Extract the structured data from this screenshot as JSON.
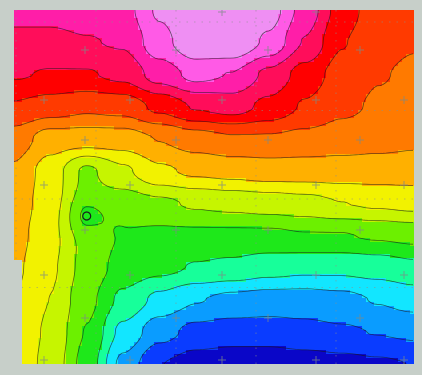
{
  "chart_data": {
    "type": "heatmap",
    "subtype": "filled-contour-map",
    "title": "",
    "xlabel": "",
    "ylabel": "",
    "grid": true,
    "legend": "none",
    "colormap": [
      "#0a06c8",
      "#0a3cff",
      "#0a9cff",
      "#12e6ff",
      "#17ff9a",
      "#1ee81a",
      "#6cf000",
      "#c6f500",
      "#f2f200",
      "#ffb000",
      "#ff7a00",
      "#ff3a00",
      "#ff0000",
      "#ff0d5a",
      "#ff1ea8",
      "#ff5ae6",
      "#ef8ff3"
    ],
    "value_range": [
      0,
      1
    ],
    "note_levels": 16,
    "cols": 12,
    "rows": 12,
    "values": [
      [
        0.84,
        0.84,
        0.85,
        0.86,
        0.95,
        1.0,
        1.0,
        0.97,
        0.86,
        0.74,
        0.67,
        0.66
      ],
      [
        0.81,
        0.81,
        0.82,
        0.83,
        0.92,
        0.99,
        1.0,
        0.93,
        0.82,
        0.71,
        0.66,
        0.65
      ],
      [
        0.77,
        0.76,
        0.76,
        0.78,
        0.85,
        0.9,
        0.88,
        0.81,
        0.74,
        0.68,
        0.65,
        0.64
      ],
      [
        0.7,
        0.68,
        0.66,
        0.67,
        0.72,
        0.77,
        0.79,
        0.75,
        0.7,
        0.66,
        0.64,
        0.63
      ],
      [
        0.62,
        0.56,
        0.56,
        0.56,
        0.59,
        0.62,
        0.64,
        0.64,
        0.63,
        0.62,
        0.61,
        0.6
      ],
      [
        0.58,
        0.5,
        0.4,
        0.46,
        0.52,
        0.54,
        0.55,
        0.56,
        0.56,
        0.56,
        0.56,
        0.56
      ],
      [
        0.56,
        0.5,
        0.4,
        0.38,
        0.4,
        0.42,
        0.43,
        0.44,
        0.45,
        0.47,
        0.48,
        0.49
      ],
      [
        0.55,
        0.49,
        0.4,
        0.35,
        0.34,
        0.34,
        0.34,
        0.34,
        0.35,
        0.35,
        0.36,
        0.37
      ],
      [
        0.54,
        0.48,
        0.39,
        0.33,
        0.31,
        0.29,
        0.28,
        0.26,
        0.25,
        0.25,
        0.26,
        0.28
      ],
      [
        0.53,
        0.47,
        0.37,
        0.28,
        0.22,
        0.18,
        0.16,
        0.15,
        0.15,
        0.16,
        0.18,
        0.2
      ],
      [
        0.52,
        0.46,
        0.35,
        0.22,
        0.14,
        0.1,
        0.09,
        0.09,
        0.1,
        0.11,
        0.12,
        0.13
      ],
      [
        0.52,
        0.45,
        0.33,
        0.16,
        0.06,
        0.03,
        0.02,
        0.02,
        0.03,
        0.04,
        0.05,
        0.06
      ]
    ],
    "peaks": [
      {
        "kind": "local-minimum",
        "col": 2.0,
        "row": 6.4
      }
    ]
  }
}
